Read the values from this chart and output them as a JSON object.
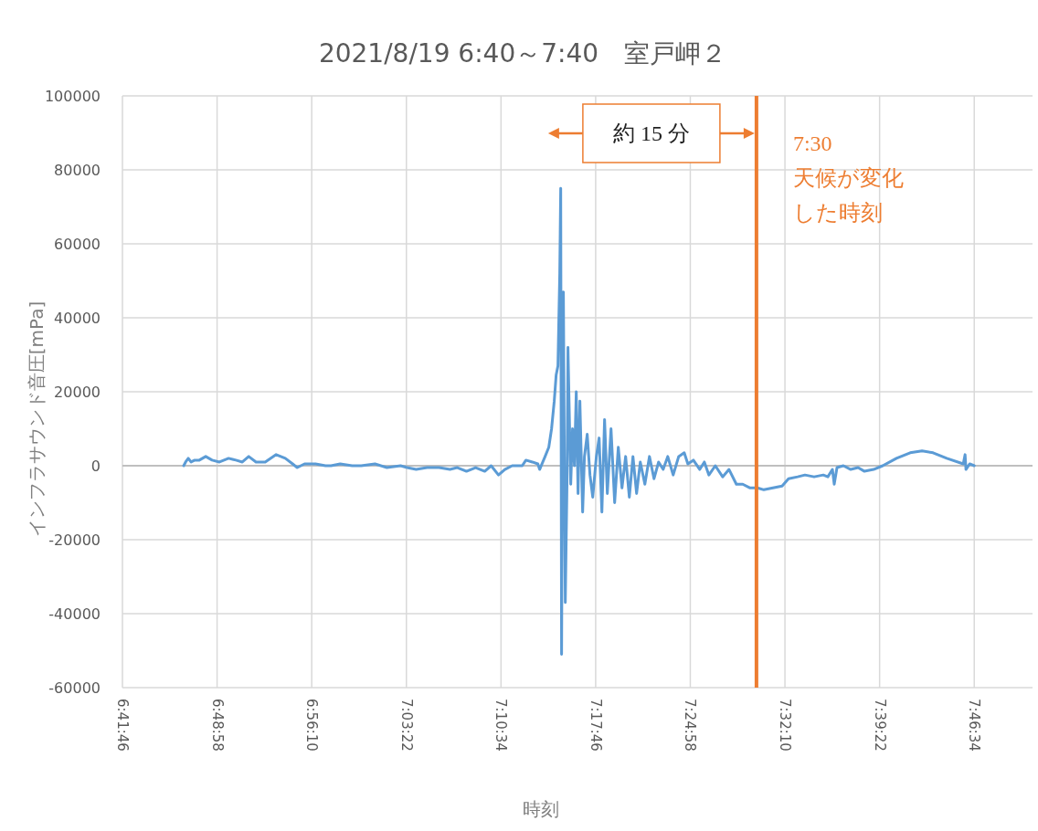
{
  "chart_data": {
    "type": "line",
    "title": "2021/8/19  6:40～7:40　室戸岬２",
    "xlabel": "時刻",
    "ylabel": "インフラサウンド音圧[mPa]",
    "xlim": [
      6.69611,
      7.85
    ],
    "xticks": [
      {
        "value": 6.69611,
        "label": "6:41:46"
      },
      {
        "value": 6.81611,
        "label": "6:48:58"
      },
      {
        "value": 6.93611,
        "label": "6:56:10"
      },
      {
        "value": 7.05611,
        "label": "7:03:22"
      },
      {
        "value": 7.17611,
        "label": "7:10:34"
      },
      {
        "value": 7.29611,
        "label": "7:17:46"
      },
      {
        "value": 7.41611,
        "label": "7:24:58"
      },
      {
        "value": 7.53611,
        "label": "7:32:10"
      },
      {
        "value": 7.65611,
        "label": "7:39:22"
      },
      {
        "value": 7.77611,
        "label": "7:46:34"
      }
    ],
    "ylim": [
      -60000,
      100000
    ],
    "yticks": [
      -60000,
      -40000,
      -20000,
      0,
      20000,
      40000,
      60000,
      80000,
      100000
    ],
    "grid": true,
    "marker": "none",
    "line_style": "solid",
    "series": [
      {
        "color": "#5b9bd5",
        "x": [
          6.7738,
          6.7762,
          6.7796,
          6.7831,
          6.7878,
          6.7936,
          6.8017,
          6.8098,
          6.8191,
          6.8307,
          6.84,
          6.8481,
          6.8562,
          6.8655,
          6.8771,
          6.891,
          6.9026,
          6.9119,
          6.9177,
          6.927,
          6.9409,
          6.9536,
          6.9606,
          6.9722,
          6.9873,
          6.9989,
          7.0163,
          7.0314,
          7.0488,
          7.0569,
          7.0685,
          7.0824,
          7.0975,
          7.1114,
          7.1207,
          7.1323,
          7.1439,
          7.1555,
          7.1636,
          7.1729,
          7.181,
          7.1903,
          7.203,
          7.2077,
          7.2158,
          7.2228,
          7.2251,
          7.232,
          7.2367,
          7.2402,
          7.2436,
          7.246,
          7.2483,
          7.2506,
          7.2518,
          7.2529,
          7.2541,
          7.2552,
          7.2564,
          7.2576,
          7.2599,
          7.261,
          7.2645,
          7.2668,
          7.2692,
          7.2715,
          7.2738,
          7.2761,
          7.2796,
          7.2819,
          7.2854,
          7.2889,
          7.2924,
          7.297,
          7.3005,
          7.304,
          7.3074,
          7.3109,
          7.3156,
          7.3202,
          7.3248,
          7.3295,
          7.3341,
          7.3388,
          7.3434,
          7.348,
          7.3527,
          7.3585,
          7.3643,
          7.3701,
          7.3759,
          7.3817,
          7.3875,
          7.3944,
          7.4014,
          7.4084,
          7.413,
          7.42,
          7.4281,
          7.4339,
          7.4397,
          7.4478,
          7.4571,
          7.4652,
          7.4745,
          7.4826,
          7.4919,
          7.5012,
          7.5093,
          7.5209,
          7.5325,
          7.5406,
          7.5522,
          7.5615,
          7.5731,
          7.5847,
          7.5905,
          7.5963,
          7.5986,
          7.6021,
          7.6102,
          7.6195,
          7.6288,
          7.6369,
          7.6485,
          7.6601,
          7.6775,
          7.6949,
          7.71,
          7.7239,
          7.7413,
          7.7622,
          7.7645,
          7.7656,
          7.7703,
          7.7761
        ],
        "values": [
          0,
          1000,
          2000,
          1000,
          1500,
          1500,
          2500,
          1500,
          1000,
          2000,
          1500,
          1000,
          2500,
          1000,
          1000,
          3000,
          2000,
          500,
          -500,
          500,
          500,
          0,
          0,
          500,
          0,
          0,
          500,
          -500,
          0,
          -500,
          -1000,
          -500,
          -500,
          -1000,
          -500,
          -1500,
          -500,
          -1500,
          0,
          -2500,
          -1000,
          0,
          0,
          1500,
          1000,
          500,
          -1000,
          2500,
          5000,
          10000,
          17500,
          24500,
          27000,
          52000,
          75000,
          -51000,
          15000,
          47000,
          2500,
          -37000,
          -2500,
          32000,
          -5000,
          10000,
          0,
          20000,
          -7500,
          17500,
          -12500,
          2500,
          8500,
          -2500,
          -8500,
          2500,
          7500,
          -12500,
          12500,
          -7500,
          10000,
          -10000,
          5000,
          -6000,
          2500,
          -8500,
          2500,
          -7500,
          1000,
          -5000,
          2500,
          -3500,
          1000,
          -1000,
          2500,
          -2500,
          2500,
          3500,
          500,
          1500,
          -1000,
          1000,
          -2500,
          0,
          -3000,
          -1000,
          -5000,
          -5000,
          -6000,
          -6000,
          -6500,
          -6000,
          -5500,
          -3500,
          -3000,
          -2500,
          -3000,
          -2500,
          -3000,
          -1000,
          -5000,
          -500,
          0,
          -1000,
          -500,
          -1500,
          -1000,
          0,
          2000,
          3500,
          4000,
          3500,
          2000,
          500,
          3000,
          -1000,
          500,
          0
        ]
      }
    ],
    "ref_lines": [
      {
        "axis": "x",
        "value": 7.5,
        "label": "7:30",
        "color": "#ed7d31",
        "line_style": "solid"
      }
    ],
    "annotations": [
      "約 15 分",
      "天候が変化した時刻"
    ]
  }
}
